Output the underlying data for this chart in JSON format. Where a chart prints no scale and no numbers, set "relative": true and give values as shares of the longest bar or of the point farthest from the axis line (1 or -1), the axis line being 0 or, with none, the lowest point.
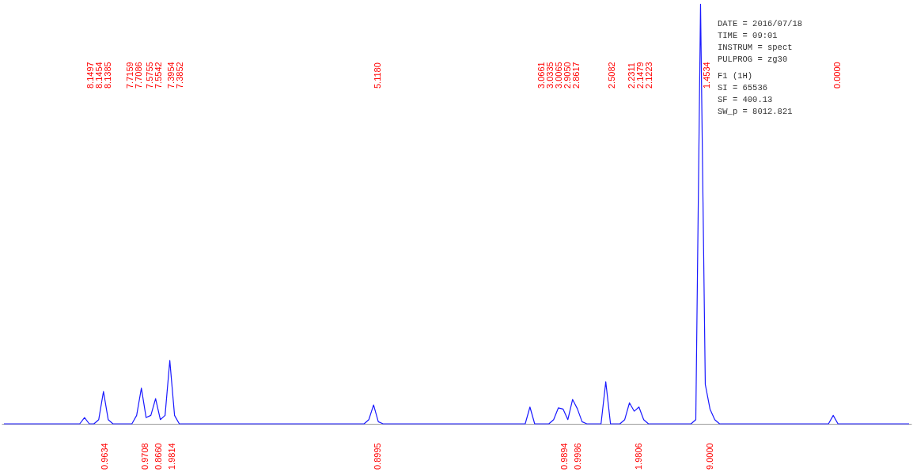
{
  "chart_data": {
    "type": "line",
    "relative": true,
    "color": "#1a1aff",
    "categories": [
      null,
      null,
      null,
      null,
      null,
      null,
      null,
      null,
      null,
      null,
      null,
      null,
      null,
      null,
      null,
      null,
      null,
      null,
      null,
      null,
      null,
      null,
      null,
      null,
      null,
      null,
      null,
      null,
      null,
      null,
      null,
      null,
      null,
      null,
      null,
      null,
      null,
      null,
      null,
      null,
      null,
      null,
      null,
      null,
      null,
      null,
      null,
      null,
      null,
      null,
      null,
      null,
      null,
      null,
      null,
      null,
      null,
      null,
      null,
      null,
      null,
      null,
      null,
      null,
      null,
      null,
      null,
      null,
      null,
      null,
      null,
      null,
      null,
      null,
      null,
      null,
      null,
      null,
      null,
      null,
      null,
      null,
      null,
      null,
      null,
      null,
      null,
      null,
      null,
      null,
      null,
      null,
      null,
      null,
      null,
      null,
      null,
      null,
      null,
      null,
      null,
      null,
      null,
      null,
      null,
      null,
      null,
      null,
      null,
      null,
      null,
      null,
      null,
      null,
      null,
      null,
      null,
      null,
      null,
      null,
      null,
      null,
      null,
      null,
      null,
      null,
      null,
      null,
      null,
      null,
      null,
      null,
      null,
      null,
      null,
      null,
      null,
      null,
      null,
      null,
      null,
      null,
      null,
      null,
      null,
      null,
      null,
      null,
      null,
      null,
      null,
      null,
      null,
      null,
      null,
      null,
      null,
      null,
      null,
      null,
      null,
      null,
      null,
      null,
      null,
      null,
      null,
      null,
      null,
      null,
      null,
      null,
      null,
      null,
      null,
      null,
      null,
      null,
      null,
      null,
      null,
      null,
      null,
      null,
      null,
      null,
      null,
      null,
      null,
      null,
      null,
      null
    ],
    "values": [
      0,
      0,
      0,
      0,
      0,
      0,
      0,
      0,
      0,
      0,
      0,
      0,
      0,
      0,
      0,
      0,
      0,
      0.015,
      0,
      0,
      0.01,
      0.077,
      0.01,
      0,
      0,
      0,
      0,
      0,
      0.02,
      0.085,
      0.015,
      0.02,
      0.06,
      0.01,
      0.02,
      0.151,
      0.02,
      0,
      0,
      0,
      0,
      0,
      0,
      0,
      0,
      0,
      0,
      0,
      0,
      0,
      0,
      0,
      0,
      0,
      0,
      0,
      0,
      0,
      0,
      0,
      0,
      0,
      0,
      0,
      0,
      0,
      0,
      0,
      0,
      0,
      0,
      0,
      0,
      0,
      0,
      0,
      0,
      0.01,
      0.045,
      0.005,
      0,
      0,
      0,
      0,
      0,
      0,
      0,
      0,
      0,
      0,
      0,
      0,
      0,
      0,
      0,
      0,
      0,
      0,
      0,
      0,
      0,
      0,
      0,
      0,
      0,
      0,
      0,
      0,
      0,
      0,
      0,
      0.04,
      0,
      0,
      0,
      0,
      0.01,
      0.038,
      0.035,
      0.01,
      0.058,
      0.036,
      0.005,
      0,
      0,
      0,
      0,
      0.1,
      0,
      0,
      0,
      0.01,
      0.05,
      0.03,
      0.04,
      0.01,
      0,
      0,
      0,
      0,
      0,
      0,
      0,
      0,
      0,
      0,
      0.01,
      1,
      0.094,
      0.035,
      0.01,
      0,
      0,
      0,
      0,
      0,
      0,
      0,
      0,
      0,
      0,
      0,
      0,
      0,
      0,
      0,
      0,
      0,
      0,
      0,
      0,
      0,
      0,
      0,
      0,
      0.02,
      0,
      0,
      0,
      0,
      0,
      0,
      0,
      0,
      0,
      0,
      0,
      0,
      0,
      0,
      0,
      0
    ],
    "annotations": [
      "8.1497",
      "8.1454",
      "8.1385",
      "7.7159",
      "7.7086",
      "7.5755",
      "7.5542",
      "7.3954",
      "7.3852",
      "5.1180",
      "3.0661",
      "3.0335",
      "3.0065",
      "2.9050",
      "2.8617",
      "2.5082",
      "2.2311",
      "2.1479",
      "2.1223",
      "1.4534",
      "0.0000",
      "0.9634",
      "0.9708",
      "0.8660",
      "1.9814",
      "0.8995",
      "0.9894",
      "0.9986",
      "1.9806",
      "9.0000",
      "DATE = 2016/07/18",
      "TIME = 09:01",
      "INSTRUM = spect",
      "PULPROG = zg30",
      "F1 (1H)",
      "SI = 65536",
      "SF = 400.13",
      "SW_p = 8012.821"
    ]
  }
}
